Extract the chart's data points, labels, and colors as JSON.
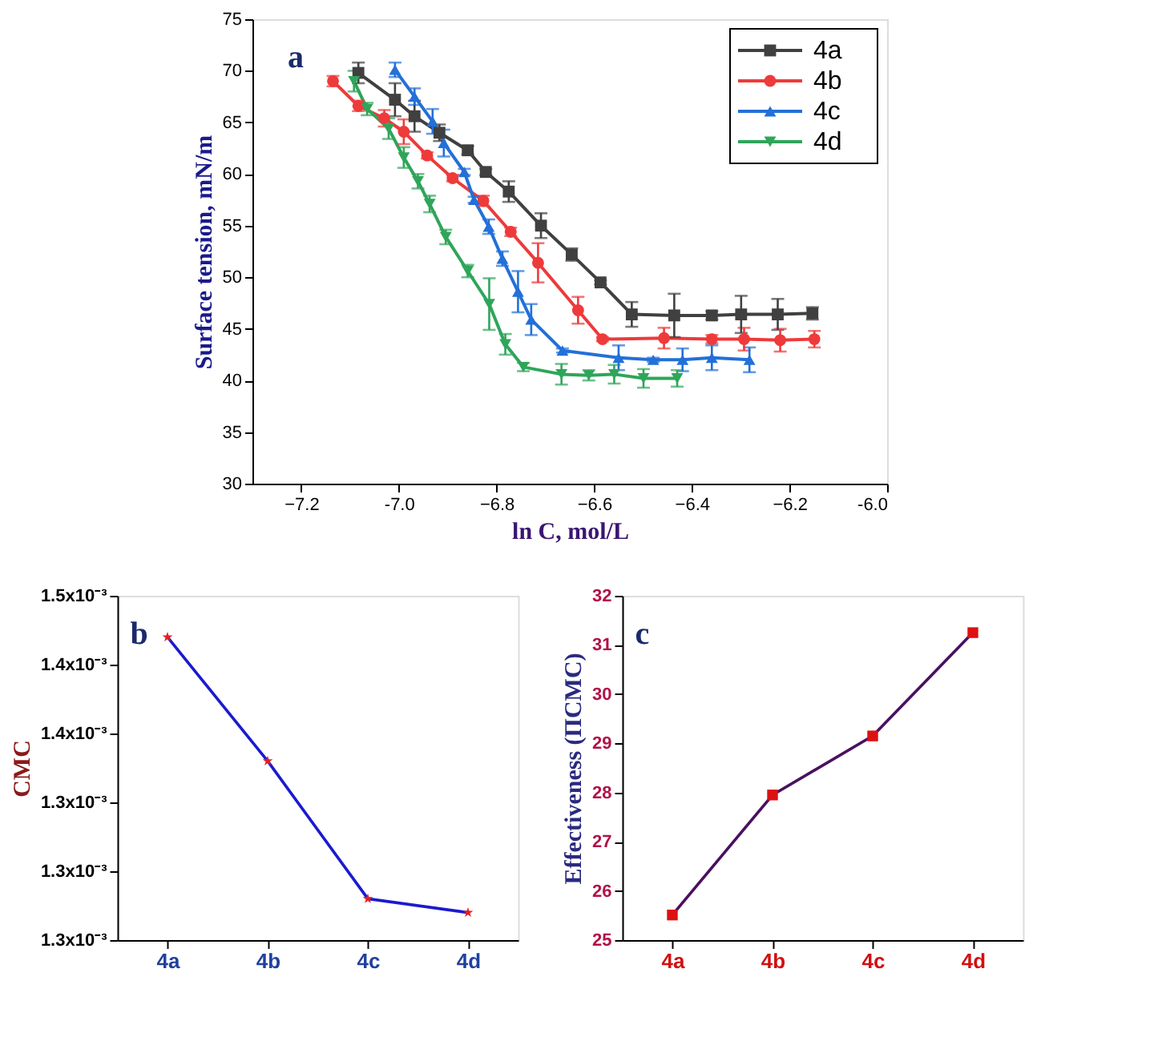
{
  "chart_data": [
    {
      "type": "line",
      "annotations": [
        "a"
      ],
      "xlabel": "ln C, mol/L",
      "ylabel": "Surface tension, mN/m",
      "xlim": [
        -7.3,
        -6.0
      ],
      "xticks": [
        -7.2,
        {
          "value": -7.0,
          "label": "-7.0"
        },
        -6.8,
        -6.6,
        -6.4,
        -6.2,
        {
          "value": -6.0,
          "label": "-6.0"
        }
      ],
      "ylim": [
        30,
        75
      ],
      "yticks": [
        30,
        35,
        40,
        45,
        50,
        55,
        60,
        65,
        70,
        75
      ],
      "grid": false,
      "legend": "top right",
      "series": [
        {
          "name": "4a",
          "color": "#404040",
          "marker": "square",
          "x": [
            -7.083,
            -7.008,
            -6.968,
            -6.917,
            -6.859,
            -6.822,
            -6.775,
            -6.709,
            -6.646,
            -6.587,
            -6.523,
            -6.436,
            -6.359,
            -6.299,
            -6.224,
            -6.153
          ],
          "values": [
            69.8,
            67.2,
            65.6,
            64.0,
            62.3,
            60.2,
            58.3,
            55.0,
            52.2,
            49.5,
            46.4,
            46.3,
            46.3,
            46.4,
            46.4,
            46.5
          ],
          "errors": [
            1.0,
            1.6,
            1.5,
            0.8,
            0.4,
            0.3,
            1.0,
            1.2,
            0.6,
            0.2,
            1.2,
            2.1,
            0.4,
            1.8,
            1.5,
            0.6
          ]
        },
        {
          "name": "4b",
          "color": "#ee3a3a",
          "marker": "circle",
          "x": [
            -7.135,
            -7.083,
            -7.03,
            -6.99,
            -6.942,
            -6.89,
            -6.827,
            -6.771,
            -6.715,
            -6.633,
            -6.583,
            -6.457,
            -6.359,
            -6.293,
            -6.219,
            -6.149
          ],
          "values": [
            69.0,
            66.6,
            65.4,
            64.1,
            61.8,
            59.6,
            57.4,
            54.4,
            51.4,
            46.8,
            44.0,
            44.1,
            44.0,
            44.0,
            43.9,
            44.0
          ],
          "errors": [
            0.5,
            0.5,
            0.8,
            1.2,
            0.3,
            0.3,
            0.5,
            0.4,
            1.9,
            1.3,
            0.2,
            1.0,
            0.4,
            1.1,
            1.1,
            0.8
          ]
        },
        {
          "name": "4c",
          "color": "#2270d8",
          "marker": "triangle",
          "x": [
            -7.008,
            -6.968,
            -6.931,
            -6.908,
            -6.866,
            -6.846,
            -6.816,
            -6.788,
            -6.756,
            -6.729,
            -6.665,
            -6.55,
            -6.479,
            -6.419,
            -6.359,
            -6.282
          ],
          "values": [
            70.1,
            67.5,
            65.1,
            63.0,
            60.2,
            57.5,
            54.9,
            51.8,
            48.6,
            45.9,
            42.9,
            42.2,
            42.0,
            42.0,
            42.2,
            42.0
          ],
          "errors": [
            0.7,
            0.8,
            1.2,
            1.3,
            0.3,
            0.3,
            0.7,
            0.7,
            2.0,
            1.5,
            0.2,
            1.2,
            0.2,
            1.1,
            1.2,
            1.2
          ]
        },
        {
          "name": "4d",
          "color": "#2fa55a",
          "marker": "triangle-down",
          "x": [
            -7.092,
            -7.065,
            -7.021,
            -6.99,
            -6.961,
            -6.937,
            -6.904,
            -6.859,
            -6.815,
            -6.782,
            -6.745,
            -6.667,
            -6.611,
            -6.559,
            -6.499,
            -6.43
          ],
          "values": [
            69.0,
            66.3,
            64.4,
            61.6,
            59.3,
            57.1,
            53.9,
            50.6,
            47.4,
            43.5,
            41.3,
            40.6,
            40.5,
            40.6,
            40.2,
            40.2
          ],
          "errors": [
            1.0,
            0.6,
            1.0,
            1.0,
            0.7,
            0.8,
            0.7,
            0.6,
            2.5,
            1.0,
            0.4,
            1.0,
            0.5,
            0.9,
            0.9,
            0.8
          ]
        }
      ]
    },
    {
      "type": "line",
      "annotations": [
        "b"
      ],
      "ylabel": "CMC",
      "categories": [
        "4a",
        "4b",
        "4c",
        "4d"
      ],
      "ylim": [
        0.00125,
        0.0015
      ],
      "yticks": [
        {
          "value": 0.00125,
          "label": "1.3x10⁻³"
        },
        {
          "value": 0.0013,
          "label": "1.3x10⁻³"
        },
        {
          "value": 0.00135,
          "label": "1.3x10⁻³"
        },
        {
          "value": 0.0014,
          "label": "1.4x10⁻³"
        },
        {
          "value": 0.00145,
          "label": "1.4x10⁻³"
        },
        {
          "value": 0.0015,
          "label": "1.5x10⁻³"
        }
      ],
      "grid": false,
      "marker": "star",
      "series": [
        {
          "color": "#1a1ad0",
          "colors": [
            "#e02020",
            "#e02020",
            "#e02020",
            "#e02020"
          ],
          "values": [
            0.00147,
            0.00138,
            0.00128,
            0.00127
          ]
        }
      ]
    },
    {
      "type": "line",
      "annotations": [
        "c"
      ],
      "ylabel": "Effectiveness (ΠCMC)",
      "categories": [
        "4a",
        "4b",
        "4c",
        "4d"
      ],
      "ylim": [
        25,
        32
      ],
      "yticks": [
        25,
        26,
        27,
        28,
        29,
        30,
        31,
        32
      ],
      "grid": false,
      "marker": "square",
      "series": [
        {
          "color": "#4a1060",
          "colors": [
            "#dd1111",
            "#dd1111",
            "#dd1111",
            "#dd1111"
          ],
          "values": [
            25.51,
            27.95,
            29.15,
            31.25
          ]
        }
      ]
    }
  ]
}
